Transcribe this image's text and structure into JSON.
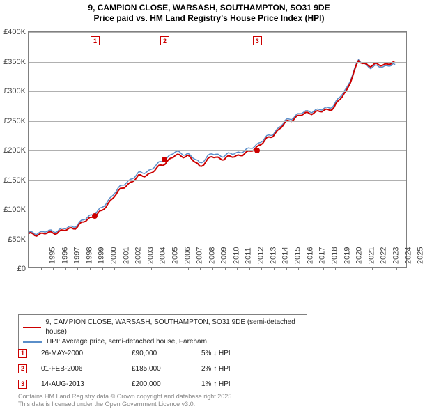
{
  "title_line1": "9, CAMPION CLOSE, WARSASH, SOUTHAMPTON, SO31 9DE",
  "title_line2": "Price paid vs. HM Land Registry's House Price Index (HPI)",
  "chart": {
    "type": "line",
    "x_year_min": 1995,
    "x_year_max": 2025.9,
    "ylim": [
      0,
      400000
    ],
    "ytick_step": 50000,
    "yticks": [
      "£0",
      "£50K",
      "£100K",
      "£150K",
      "£200K",
      "£250K",
      "£300K",
      "£350K",
      "£400K"
    ],
    "xticks_years": [
      1995,
      1996,
      1997,
      1998,
      1999,
      2000,
      2001,
      2002,
      2003,
      2004,
      2005,
      2006,
      2007,
      2008,
      2009,
      2010,
      2011,
      2012,
      2013,
      2014,
      2015,
      2016,
      2017,
      2018,
      2019,
      2020,
      2021,
      2022,
      2023,
      2024,
      2025
    ],
    "grid_color": "#b0b0b0",
    "background_color": "#ffffff",
    "border_color": "#808080",
    "series": [
      {
        "name": "9, CAMPION CLOSE, WARSASH, SOUTHAMPTON, SO31 9DE (semi-detached house)",
        "color": "#cc0000",
        "line_width": 2,
        "data_yearly": [
          56,
          57,
          59,
          63,
          70,
          84,
          95,
          122,
          140,
          154,
          160,
          176,
          190,
          190,
          172,
          188,
          185,
          190,
          195,
          210,
          225,
          245,
          257,
          263,
          265,
          272,
          300,
          350,
          343,
          345,
          348
        ]
      },
      {
        "name": "HPI: Average price, semi-detached house, Fareham",
        "color": "#5a8ec9",
        "line_width": 1.5,
        "data_yearly": [
          58,
          60,
          62,
          66,
          73,
          88,
          100,
          127,
          145,
          159,
          166,
          182,
          196,
          193,
          178,
          193,
          190,
          195,
          200,
          214,
          228,
          248,
          260,
          266,
          268,
          276,
          304,
          352,
          340,
          342,
          345
        ]
      }
    ],
    "sale_markers": [
      {
        "num": "1",
        "year": 2000.4,
        "price": 90000,
        "date": "26-MAY-2000",
        "pct": "5%",
        "arrow": "↓",
        "rel": "HPI"
      },
      {
        "num": "2",
        "year": 2006.08,
        "price": 185000,
        "date": "01-FEB-2006",
        "pct": "2%",
        "arrow": "↑",
        "rel": "HPI"
      },
      {
        "num": "3",
        "year": 2013.62,
        "price": 200000,
        "date": "14-AUG-2013",
        "pct": "1%",
        "arrow": "↑",
        "rel": "HPI"
      }
    ]
  },
  "legend": {
    "item1_color": "#cc0000",
    "item1_label": "9, CAMPION CLOSE, WARSASH, SOUTHAMPTON, SO31 9DE (semi-detached house)",
    "item2_color": "#5a8ec9",
    "item2_label": "HPI: Average price, semi-detached house, Fareham"
  },
  "footer_line1": "Contains HM Land Registry data © Crown copyright and database right 2025.",
  "footer_line2": "This data is licensed under the Open Government Licence v3.0."
}
